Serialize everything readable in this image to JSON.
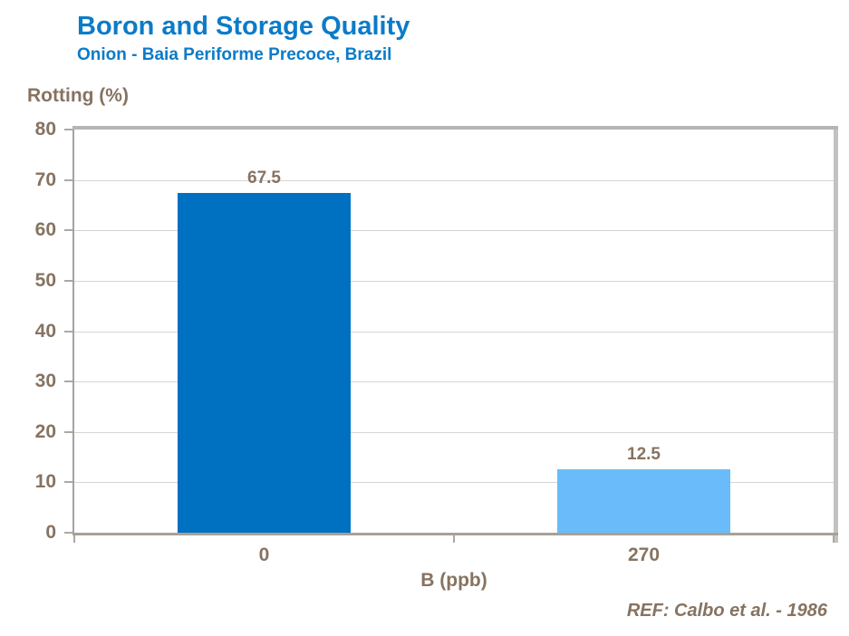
{
  "chart_data": {
    "type": "bar",
    "title": "Boron and Storage Quality",
    "subtitle": "Onion - Baia Periforme Precoce, Brazil",
    "ylabel": "Rotting (%)",
    "xlabel": "B (ppb)",
    "reference": "REF: Calbo et al. - 1986",
    "categories": [
      "0",
      "270"
    ],
    "values": [
      67.5,
      12.5
    ],
    "value_labels": [
      "67.5",
      "12.5"
    ],
    "bar_colors": [
      "#0070C0",
      "#69BCF9"
    ],
    "ylim": [
      0,
      80
    ],
    "yticks": [
      0,
      10,
      20,
      30,
      40,
      50,
      60,
      70,
      80
    ],
    "grid": true,
    "legend": "none",
    "colors": {
      "title": "#0C7BC8",
      "text": "#867361",
      "gridline": "#D5D5D5",
      "axis": "#A3A3A3",
      "axis_bottom": "#A8A098",
      "border_top": "#B5B5B5",
      "border_right": "#C2C2C2",
      "tick": "#B0A89E"
    }
  }
}
